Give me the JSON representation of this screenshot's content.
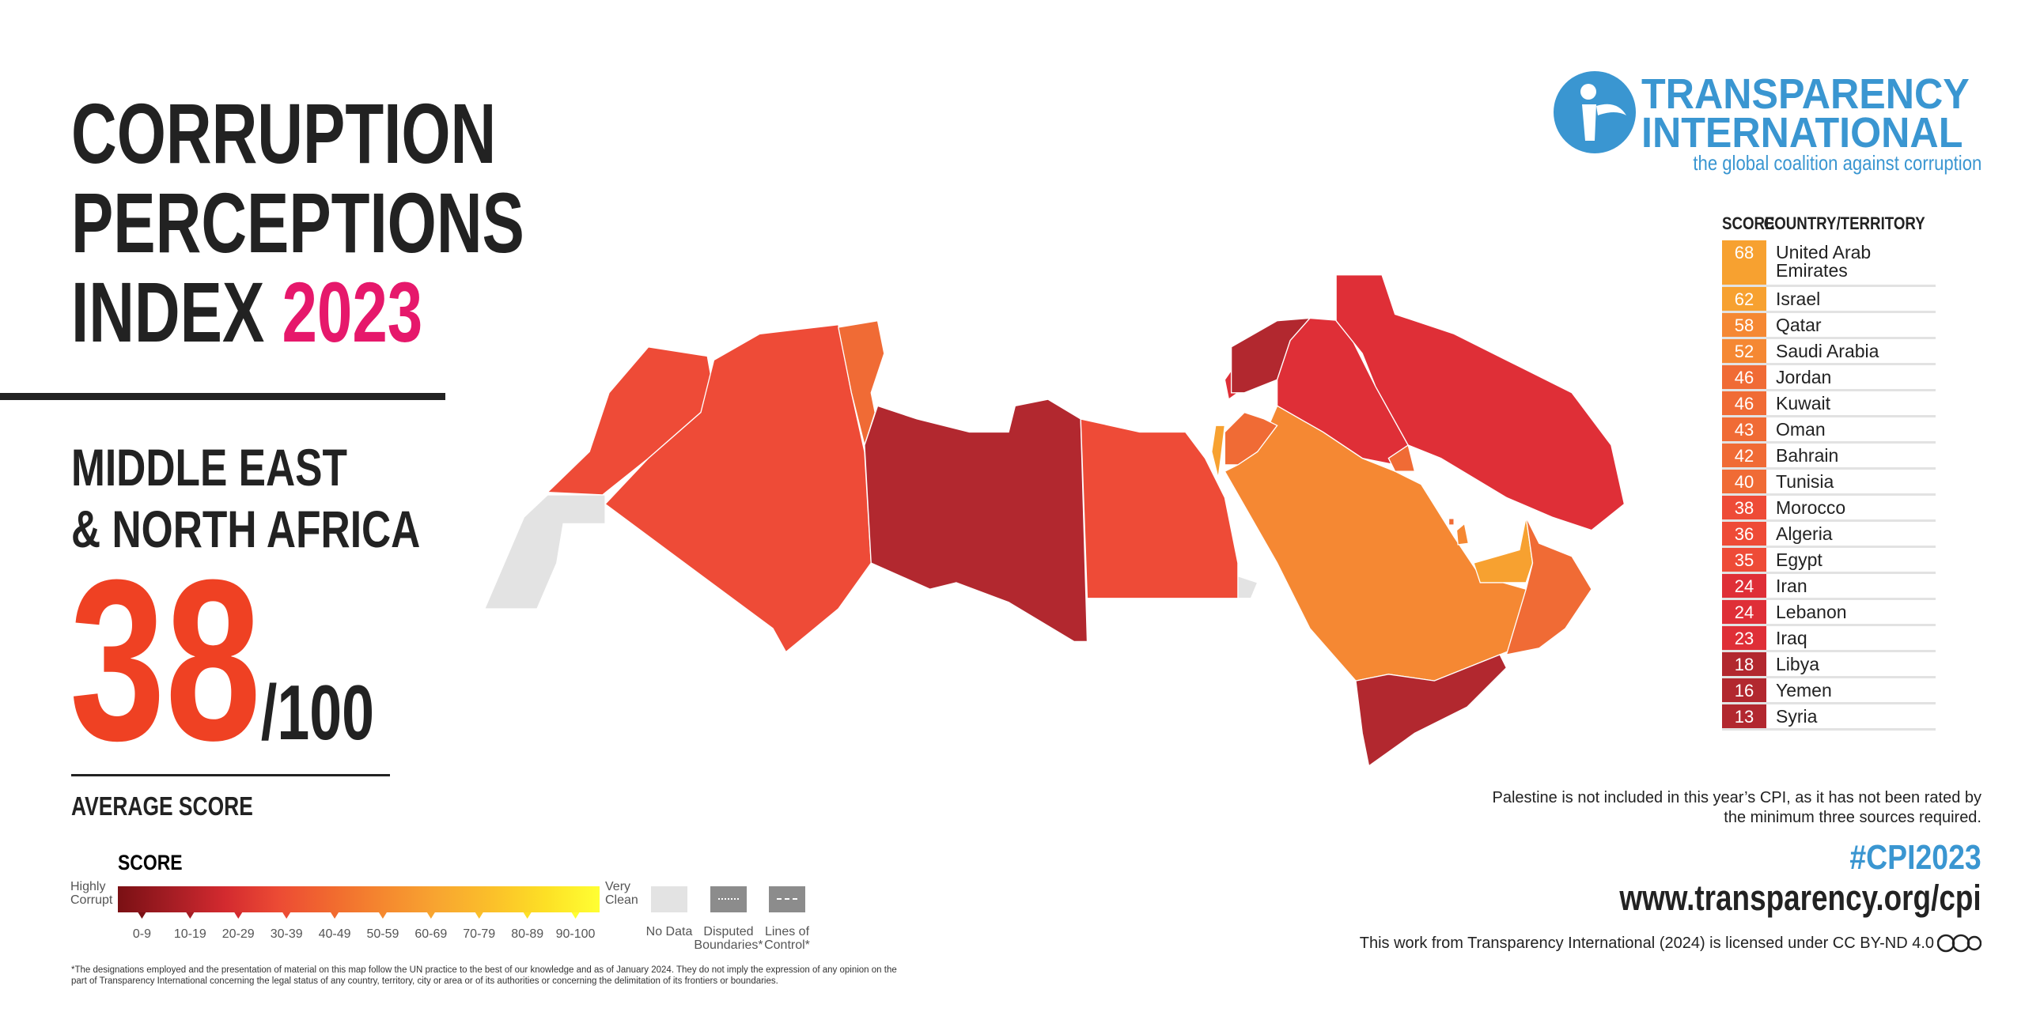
{
  "header": {
    "title_lines": [
      "CORRUPTION",
      "PERCEPTIONS",
      "INDEX"
    ],
    "year": "2023",
    "region_lines": [
      "MIDDLE EAST",
      "& NORTH AFRICA"
    ],
    "average_score": 38,
    "max_score": "/100",
    "average_label": "AVERAGE SCORE"
  },
  "logo": {
    "name_lines": [
      "TRANSPARENCY",
      "INTERNATIONAL"
    ],
    "tagline": "the global coalition against corruption"
  },
  "table": {
    "columns": [
      "SCORE",
      "COUNTRY/TERRITORY"
    ],
    "rows": [
      {
        "score": 68,
        "country": "United Arab Emirates",
        "color": "#f7a130"
      },
      {
        "score": 62,
        "country": "Israel",
        "color": "#f7a130"
      },
      {
        "score": 58,
        "country": "Qatar",
        "color": "#f58833"
      },
      {
        "score": 52,
        "country": "Saudi Arabia",
        "color": "#f58833"
      },
      {
        "score": 46,
        "country": "Jordan",
        "color": "#f06b35"
      },
      {
        "score": 46,
        "country": "Kuwait",
        "color": "#f06b35"
      },
      {
        "score": 43,
        "country": "Oman",
        "color": "#f06b35"
      },
      {
        "score": 42,
        "country": "Bahrain",
        "color": "#f06b35"
      },
      {
        "score": 40,
        "country": "Tunisia",
        "color": "#f06b35"
      },
      {
        "score": 38,
        "country": "Morocco",
        "color": "#ee4b37"
      },
      {
        "score": 36,
        "country": "Algeria",
        "color": "#ee4b37"
      },
      {
        "score": 35,
        "country": "Egypt",
        "color": "#ee4b37"
      },
      {
        "score": 24,
        "country": "Iran",
        "color": "#df2f37"
      },
      {
        "score": 24,
        "country": "Lebanon",
        "color": "#df2f37"
      },
      {
        "score": 23,
        "country": "Iraq",
        "color": "#df2f37"
      },
      {
        "score": 18,
        "country": "Libya",
        "color": "#b2282f"
      },
      {
        "score": 16,
        "country": "Yemen",
        "color": "#b2282f"
      },
      {
        "score": 13,
        "country": "Syria",
        "color": "#b2282f"
      }
    ]
  },
  "legend": {
    "title": "SCORE",
    "low_label": "Highly Corrupt",
    "high_label": "Very Clean",
    "bins": [
      {
        "label": "0-9",
        "color": "#7a1014"
      },
      {
        "label": "10-19",
        "color": "#a51d24"
      },
      {
        "label": "20-29",
        "color": "#d32a2f"
      },
      {
        "label": "30-39",
        "color": "#ec4b34"
      },
      {
        "label": "40-49",
        "color": "#f16a2f"
      },
      {
        "label": "50-59",
        "color": "#f5892f"
      },
      {
        "label": "60-69",
        "color": "#f8a630"
      },
      {
        "label": "70-79",
        "color": "#fbc02a"
      },
      {
        "label": "80-89",
        "color": "#fde025"
      },
      {
        "label": "90-100",
        "color": "#ffff33"
      }
    ],
    "no_data": "No Data",
    "no_data_color": "#e3e3e3",
    "disputed": "Disputed Boundaries*",
    "lines_of_control": "Lines of Control*"
  },
  "notes": {
    "palestine": "Palestine is not included in this year’s CPI, as it has not been rated by the minimum three sources required.",
    "footnote": "*The designations employed and the presentation of material on this map follow the UN practice to the best of our knowledge and as of January 2024. They do not imply the expression of any opinion on the part of Transparency International concerning the legal status of any country, territory, city or area or of its authorities or concerning the delimitation of its frontiers or boundaries."
  },
  "hashtag": "#CPI2023",
  "url": "www.transparency.org/cpi",
  "license": "This work from Transparency International (2024) is licensed under CC BY-ND 4.0"
}
